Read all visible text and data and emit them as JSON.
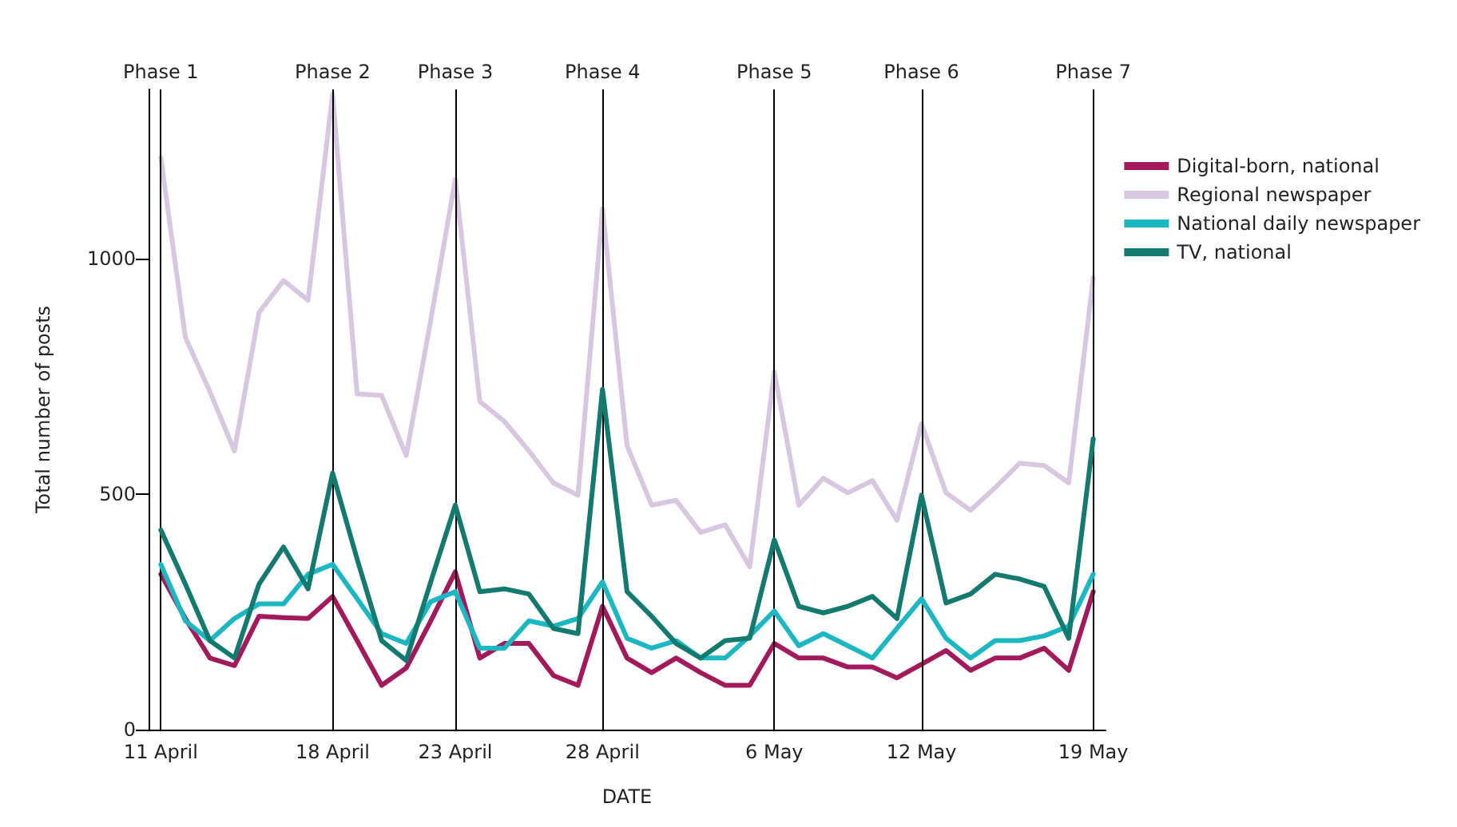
{
  "chart_data": {
    "type": "line",
    "xlabel": "DATE",
    "ylabel": "Total number of posts",
    "categories": [
      "11 April",
      null,
      null,
      null,
      null,
      null,
      null,
      "18 April",
      null,
      null,
      null,
      null,
      "23 April",
      null,
      null,
      null,
      null,
      null,
      "28 April",
      null,
      null,
      null,
      null,
      null,
      null,
      "6 May",
      null,
      null,
      null,
      null,
      null,
      "12 May",
      null,
      null,
      null,
      null,
      null,
      null,
      "19 May"
    ],
    "series": [
      {
        "name": "Digital-born, national",
        "color": "#a3195b",
        "values": [
          330,
          236,
          152,
          136,
          241,
          238,
          236,
          283,
          189,
          94,
          131,
          231,
          335,
          152,
          183,
          183,
          115,
          94,
          262,
          152,
          121,
          152,
          121,
          94,
          94,
          183,
          152,
          152,
          133,
          133,
          110,
          139,
          168,
          126,
          152,
          152,
          173,
          126,
          293
        ]
      },
      {
        "name": "Regional newspaper",
        "color": "#d9c6e0",
        "values": [
          1215,
          833,
          718,
          592,
          886,
          954,
          912,
          1350,
          713,
          710,
          582,
          870,
          1169,
          697,
          655,
          592,
          524,
          498,
          1106,
          603,
          477,
          487,
          419,
          435,
          346,
          760,
          477,
          534,
          503,
          529,
          445,
          650,
          503,
          466,
          514,
          566,
          561,
          524,
          960
        ]
      },
      {
        "name": "National daily newspaper",
        "color": "#1bb8c4",
        "values": [
          351,
          231,
          189,
          236,
          267,
          267,
          330,
          351,
          278,
          204,
          183,
          272,
          293,
          173,
          173,
          231,
          220,
          236,
          314,
          194,
          173,
          189,
          152,
          152,
          199,
          252,
          178,
          204,
          178,
          152,
          215,
          278,
          194,
          152,
          189,
          189,
          199,
          220,
          330
        ]
      },
      {
        "name": "TV, national",
        "color": "#127a6e",
        "values": [
          424,
          309,
          189,
          152,
          309,
          388,
          299,
          545,
          362,
          189,
          147,
          314,
          477,
          293,
          299,
          288,
          215,
          204,
          723,
          293,
          241,
          183,
          152,
          189,
          194,
          403,
          262,
          248,
          262,
          283,
          236,
          498,
          269,
          288,
          330,
          320,
          304,
          194,
          618
        ]
      }
    ],
    "ylim": [
      0,
      1360
    ],
    "yticks": [
      0,
      500,
      1000
    ],
    "ref_lines": [
      {
        "axis": "x",
        "value": "11 April",
        "label": "Phase 1",
        "color": "#000000"
      },
      {
        "axis": "x",
        "value": "18 April",
        "label": "Phase 2",
        "color": "#000000"
      },
      {
        "axis": "x",
        "value": "23 April",
        "label": "Phase 3",
        "color": "#000000"
      },
      {
        "axis": "x",
        "value": "28 April",
        "label": "Phase 4",
        "color": "#000000"
      },
      {
        "axis": "x",
        "value": "6 May",
        "label": "Phase 5",
        "color": "#000000"
      },
      {
        "axis": "x",
        "value": "12 May",
        "label": "Phase 6",
        "color": "#000000"
      },
      {
        "axis": "x",
        "value": "19 May",
        "label": "Phase 7",
        "color": "#000000"
      }
    ],
    "legend": "right",
    "grid": false,
    "marker": "none",
    "line_style": "solid"
  }
}
